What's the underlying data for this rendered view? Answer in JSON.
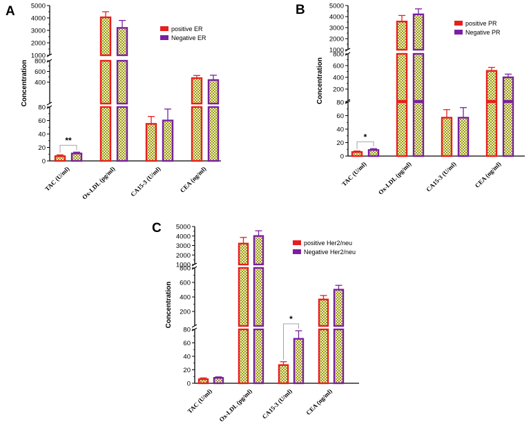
{
  "figure": {
    "colors": {
      "positive": "#e81e1e",
      "negative": "#7a1fa2",
      "fill_a": "#8e8e5e",
      "fill_b": "#ffff80",
      "axis": "#000000"
    }
  },
  "chart_data": [
    {
      "panel": "A",
      "type": "bar",
      "ylabel": "Concentration",
      "categories": [
        "TAC (U/ml)",
        "Ox-LDL (pg/ml)",
        "CA15-3 (U/ml)",
        "CEA (ng/ml)"
      ],
      "series": [
        {
          "name": "positive ER",
          "values": [
            7,
            4050,
            55,
            475
          ],
          "errors": [
            2,
            450,
            11,
            50
          ]
        },
        {
          "name": "Negative ER",
          "values": [
            11,
            3200,
            60,
            440
          ],
          "errors": [
            2,
            600,
            17,
            90
          ]
        }
      ],
      "y_segments": [
        {
          "min": 0,
          "max": 80,
          "ticks": [
            0,
            20,
            40,
            60,
            80
          ]
        },
        {
          "min": 0,
          "max": 800,
          "ticks": [
            400,
            600,
            800
          ]
        },
        {
          "min": 1000,
          "max": 5000,
          "ticks": [
            1000,
            2000,
            3000,
            4000,
            5000
          ]
        }
      ],
      "significance": [
        {
          "category": 0,
          "label": "**"
        }
      ]
    },
    {
      "panel": "B",
      "type": "bar",
      "ylabel": "Concentration",
      "categories": [
        "TAC (U/ml)",
        "Ox-LDL (pg/ml)",
        "CA15-3 (U/ml)",
        "CEA (ng/ml)"
      ],
      "series": [
        {
          "name": "positive PR",
          "values": [
            6,
            3550,
            57,
            510
          ],
          "errors": [
            1.5,
            550,
            12,
            60
          ]
        },
        {
          "name": "Negative PR",
          "values": [
            9,
            4200,
            57,
            400
          ],
          "errors": [
            2,
            500,
            15,
            55
          ]
        }
      ],
      "y_segments": [
        {
          "min": 0,
          "max": 80,
          "ticks": [
            0,
            20,
            40,
            60,
            80
          ]
        },
        {
          "min": 0,
          "max": 800,
          "ticks": [
            200,
            400,
            600,
            800
          ]
        },
        {
          "min": 1000,
          "max": 5000,
          "ticks": [
            1000,
            2000,
            3000,
            4000,
            5000
          ]
        }
      ],
      "significance": [
        {
          "category": 0,
          "label": "*"
        }
      ]
    },
    {
      "panel": "C",
      "type": "bar",
      "ylabel": "Concentration",
      "categories": [
        "TAC (U/ml)",
        "Ox-LDL (pg/ml)",
        "CA15-3 (U/ml)",
        "CEA (ng/ml)"
      ],
      "series": [
        {
          "name": "positive Her2/neu",
          "values": [
            6,
            3200,
            27,
            365
          ],
          "errors": [
            2,
            650,
            5,
            55
          ]
        },
        {
          "name": "Negative Her2/neu",
          "values": [
            8,
            4000,
            66,
            500
          ],
          "errors": [
            1.5,
            550,
            12,
            60
          ]
        }
      ],
      "y_segments": [
        {
          "min": 0,
          "max": 80,
          "ticks": [
            0,
            20,
            40,
            60,
            80
          ]
        },
        {
          "min": 0,
          "max": 800,
          "ticks": [
            200,
            400,
            600,
            800
          ]
        },
        {
          "min": 1000,
          "max": 5000,
          "ticks": [
            1000,
            2000,
            3000,
            4000,
            5000
          ]
        }
      ],
      "significance": [
        {
          "category": 2,
          "label": "*"
        }
      ]
    }
  ]
}
